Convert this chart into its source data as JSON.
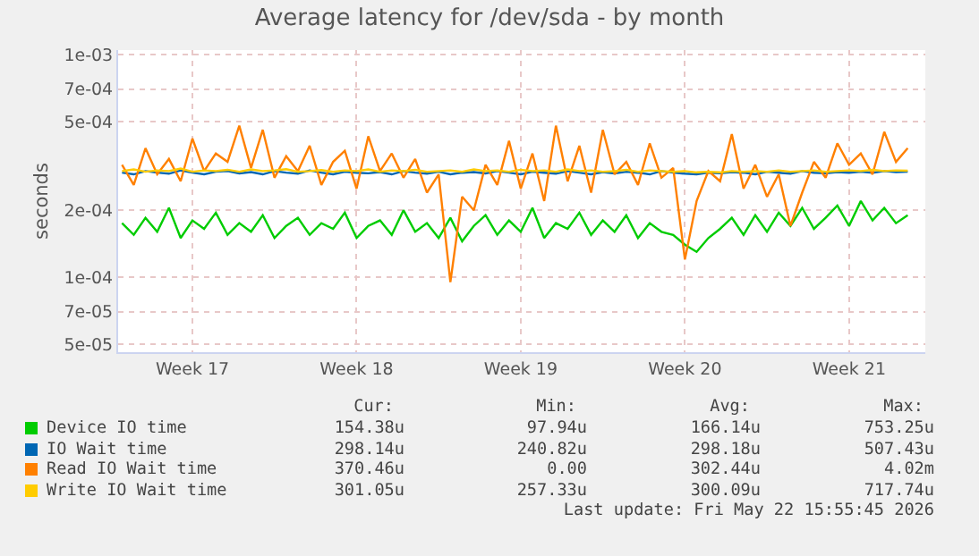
{
  "chart_data": {
    "type": "line",
    "title": "Average latency for /dev/sda - by month",
    "ylabel": "seconds",
    "x": [
      "2026-04-20T12:00",
      "2026-04-21T00:00",
      "2026-04-21T12:00",
      "2026-04-22T00:00",
      "2026-04-22T12:00",
      "2026-04-23T00:00",
      "2026-04-23T12:00",
      "2026-04-24T00:00",
      "2026-04-24T12:00",
      "2026-04-25T00:00",
      "2026-04-25T12:00",
      "2026-04-26T00:00",
      "2026-04-26T12:00",
      "2026-04-27T00:00",
      "2026-04-27T12:00",
      "2026-04-28T00:00",
      "2026-04-28T12:00",
      "2026-04-29T00:00",
      "2026-04-29T12:00",
      "2026-04-30T00:00",
      "2026-04-30T12:00",
      "2026-05-01T00:00",
      "2026-05-01T12:00",
      "2026-05-02T00:00",
      "2026-05-02T12:00",
      "2026-05-03T00:00",
      "2026-05-03T12:00",
      "2026-05-04T00:00",
      "2026-05-04T12:00",
      "2026-05-05T00:00",
      "2026-05-05T12:00",
      "2026-05-06T00:00",
      "2026-05-06T12:00",
      "2026-05-07T00:00",
      "2026-05-07T12:00",
      "2026-05-08T00:00",
      "2026-05-08T12:00",
      "2026-05-09T00:00",
      "2026-05-09T12:00",
      "2026-05-10T00:00",
      "2026-05-10T12:00",
      "2026-05-11T00:00",
      "2026-05-11T12:00",
      "2026-05-12T00:00",
      "2026-05-12T12:00",
      "2026-05-13T00:00",
      "2026-05-13T12:00",
      "2026-05-14T00:00",
      "2026-05-14T12:00",
      "2026-05-15T00:00",
      "2026-05-15T12:00",
      "2026-05-16T00:00",
      "2026-05-16T12:00",
      "2026-05-17T00:00",
      "2026-05-17T12:00",
      "2026-05-18T00:00",
      "2026-05-18T12:00",
      "2026-05-19T00:00",
      "2026-05-19T12:00",
      "2026-05-20T00:00",
      "2026-05-20T12:00",
      "2026-05-21T00:00",
      "2026-05-21T12:00",
      "2026-05-22T00:00",
      "2026-05-22T12:00",
      "2026-05-23T00:00",
      "2026-05-23T12:00",
      "2026-05-24T00:00"
    ],
    "series": [
      {
        "name": "Device IO time",
        "color": "#00cc00",
        "values": [
          0.000175,
          0.000155,
          0.000185,
          0.00016,
          0.000205,
          0.00015,
          0.00018,
          0.000165,
          0.000195,
          0.000155,
          0.000175,
          0.00016,
          0.00019,
          0.00015,
          0.00017,
          0.000185,
          0.000155,
          0.000175,
          0.000165,
          0.000195,
          0.00015,
          0.00017,
          0.00018,
          0.000155,
          0.0002,
          0.00016,
          0.000175,
          0.00015,
          0.000185,
          0.000145,
          0.00017,
          0.00019,
          0.000155,
          0.00018,
          0.00016,
          0.000205,
          0.00015,
          0.000175,
          0.000165,
          0.000195,
          0.000155,
          0.00018,
          0.00016,
          0.00019,
          0.00015,
          0.000175,
          0.00016,
          0.000155,
          0.00014,
          0.00013,
          0.00015,
          0.000165,
          0.000185,
          0.000155,
          0.00019,
          0.00016,
          0.000195,
          0.00017,
          0.000205,
          0.000165,
          0.000185,
          0.00021,
          0.00017,
          0.00022,
          0.00018,
          0.000205,
          0.000175,
          0.00019
        ]
      },
      {
        "name": "IO Wait time",
        "color": "#0066b3",
        "values": [
          0.000295,
          0.00029,
          0.0003,
          0.000295,
          0.000292,
          0.000302,
          0.000295,
          0.00029,
          0.000298,
          0.0003,
          0.000293,
          0.000297,
          0.00029,
          0.0003,
          0.000295,
          0.000292,
          0.000302,
          0.000295,
          0.00029,
          0.000298,
          0.000295,
          0.000293,
          0.000297,
          0.00029,
          0.0003,
          0.000295,
          0.000292,
          0.000298,
          0.00029,
          0.000295,
          0.000297,
          0.000293,
          0.0003,
          0.000295,
          0.00029,
          0.000298,
          0.000295,
          0.000292,
          0.0003,
          0.000295,
          0.00029,
          0.000297,
          0.000293,
          0.000298,
          0.000295,
          0.00029,
          0.0003,
          0.000295,
          0.000292,
          0.00029,
          0.000295,
          0.000293,
          0.000297,
          0.000295,
          0.00029,
          0.000298,
          0.000295,
          0.000292,
          0.0003,
          0.000295,
          0.000293,
          0.000297,
          0.000295,
          0.000298,
          0.000295,
          0.0003,
          0.000297,
          0.000298
        ]
      },
      {
        "name": "Read IO Wait time",
        "color": "#ff8000",
        "values": [
          0.00032,
          0.00026,
          0.00038,
          0.00029,
          0.00034,
          0.00027,
          0.00042,
          0.0003,
          0.00036,
          0.00033,
          0.00048,
          0.00031,
          0.00046,
          0.00028,
          0.00035,
          0.0003,
          0.00039,
          0.00026,
          0.00033,
          0.00037,
          0.00025,
          0.00043,
          0.0003,
          0.00036,
          0.00028,
          0.00034,
          0.00024,
          0.00029,
          9.5e-05,
          0.00023,
          0.0002,
          0.00032,
          0.00026,
          0.00041,
          0.00025,
          0.00036,
          0.00022,
          0.00048,
          0.00027,
          0.00039,
          0.00024,
          0.00046,
          0.00029,
          0.00033,
          0.00026,
          0.0004,
          0.00028,
          0.00031,
          0.00012,
          0.00022,
          0.0003,
          0.00027,
          0.00044,
          0.00025,
          0.00032,
          0.00023,
          0.00029,
          0.00017,
          0.00024,
          0.00033,
          0.00028,
          0.0004,
          0.00032,
          0.00036,
          0.00029,
          0.00045,
          0.00033,
          0.00038
        ]
      },
      {
        "name": "Write IO Wait time",
        "color": "#ffcc00",
        "values": [
          0.0003,
          0.000305,
          0.000298,
          0.000302,
          0.0003,
          0.000308,
          0.000298,
          0.000302,
          0.0003,
          0.000304,
          0.000298,
          0.000305,
          0.0003,
          0.000302,
          0.000306,
          0.000298,
          0.0003,
          0.000303,
          0.000298,
          0.000302,
          0.0003,
          0.000305,
          0.000298,
          0.000302,
          0.0003,
          0.000304,
          0.000298,
          0.0003,
          0.000302,
          0.000298,
          0.000305,
          0.0003,
          0.000302,
          0.000298,
          0.000304,
          0.0003,
          0.000302,
          0.000298,
          0.000305,
          0.0003,
          0.000302,
          0.000298,
          0.0003,
          0.000304,
          0.000298,
          0.000302,
          0.0003,
          0.000298,
          0.0003,
          0.000296,
          0.000298,
          0.000296,
          0.0003,
          0.000298,
          0.0003,
          0.000298,
          0.000302,
          0.000298,
          0.0003,
          0.000302,
          0.000298,
          0.0003,
          0.000302,
          0.0003,
          0.000304,
          0.0003,
          0.000302,
          0.000301
        ]
      }
    ],
    "xlim": [
      "2026-04-20T08:00",
      "2026-05-24T18:00"
    ],
    "xticks": [
      {
        "value": "2026-04-23T12:00",
        "label": "Week 17"
      },
      {
        "value": "2026-04-30T12:00",
        "label": "Week 18"
      },
      {
        "value": "2026-05-07T12:00",
        "label": "Week 19"
      },
      {
        "value": "2026-05-14T12:00",
        "label": "Week 20"
      },
      {
        "value": "2026-05-21T12:00",
        "label": "Week 21"
      }
    ],
    "ylim": [
      4.6e-05,
      0.00105
    ],
    "yticks": [
      {
        "value": 5e-05,
        "label": "5e-05"
      },
      {
        "value": 7e-05,
        "label": "7e-05"
      },
      {
        "value": 0.0001,
        "label": "1e-04"
      },
      {
        "value": 0.0002,
        "label": "2e-04"
      },
      {
        "value": 0.0005,
        "label": "5e-04"
      },
      {
        "value": 0.0007,
        "label": "7e-04"
      },
      {
        "value": 0.001,
        "label": "1e-03"
      }
    ],
    "log": "y",
    "grid": true,
    "legend": "bottom",
    "marker": "none",
    "line_style": "solid",
    "annotations": [
      "Cur:",
      "Min:",
      "Avg:",
      "Max:",
      "154.38u",
      "97.94u",
      "166.14u",
      "753.25u",
      "298.14u",
      "240.82u",
      "298.18u",
      "507.43u",
      "370.46u",
      "0.00",
      "302.44u",
      "4.02m",
      "301.05u",
      "257.33u",
      "300.09u",
      "717.74u",
      "Last update: Fri May 22 15:55:45 2026"
    ]
  }
}
